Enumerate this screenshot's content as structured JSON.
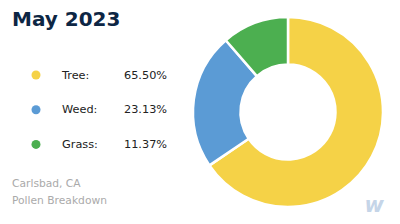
{
  "chart_data": {
    "type": "donut",
    "title": "May 2023",
    "subtitle": "Carlsbad, CA\nPollen Breakdown",
    "categories": [
      "Tree:",
      "Weed:",
      "Grass:"
    ],
    "values": [
      65.5,
      23.13,
      11.37
    ],
    "value_labels": [
      "65.50%",
      "23.13%",
      "11.37%"
    ],
    "colors": [
      "#f5d247",
      "#5b9bd5",
      "#4caf50"
    ],
    "annotations": [
      "w"
    ]
  }
}
